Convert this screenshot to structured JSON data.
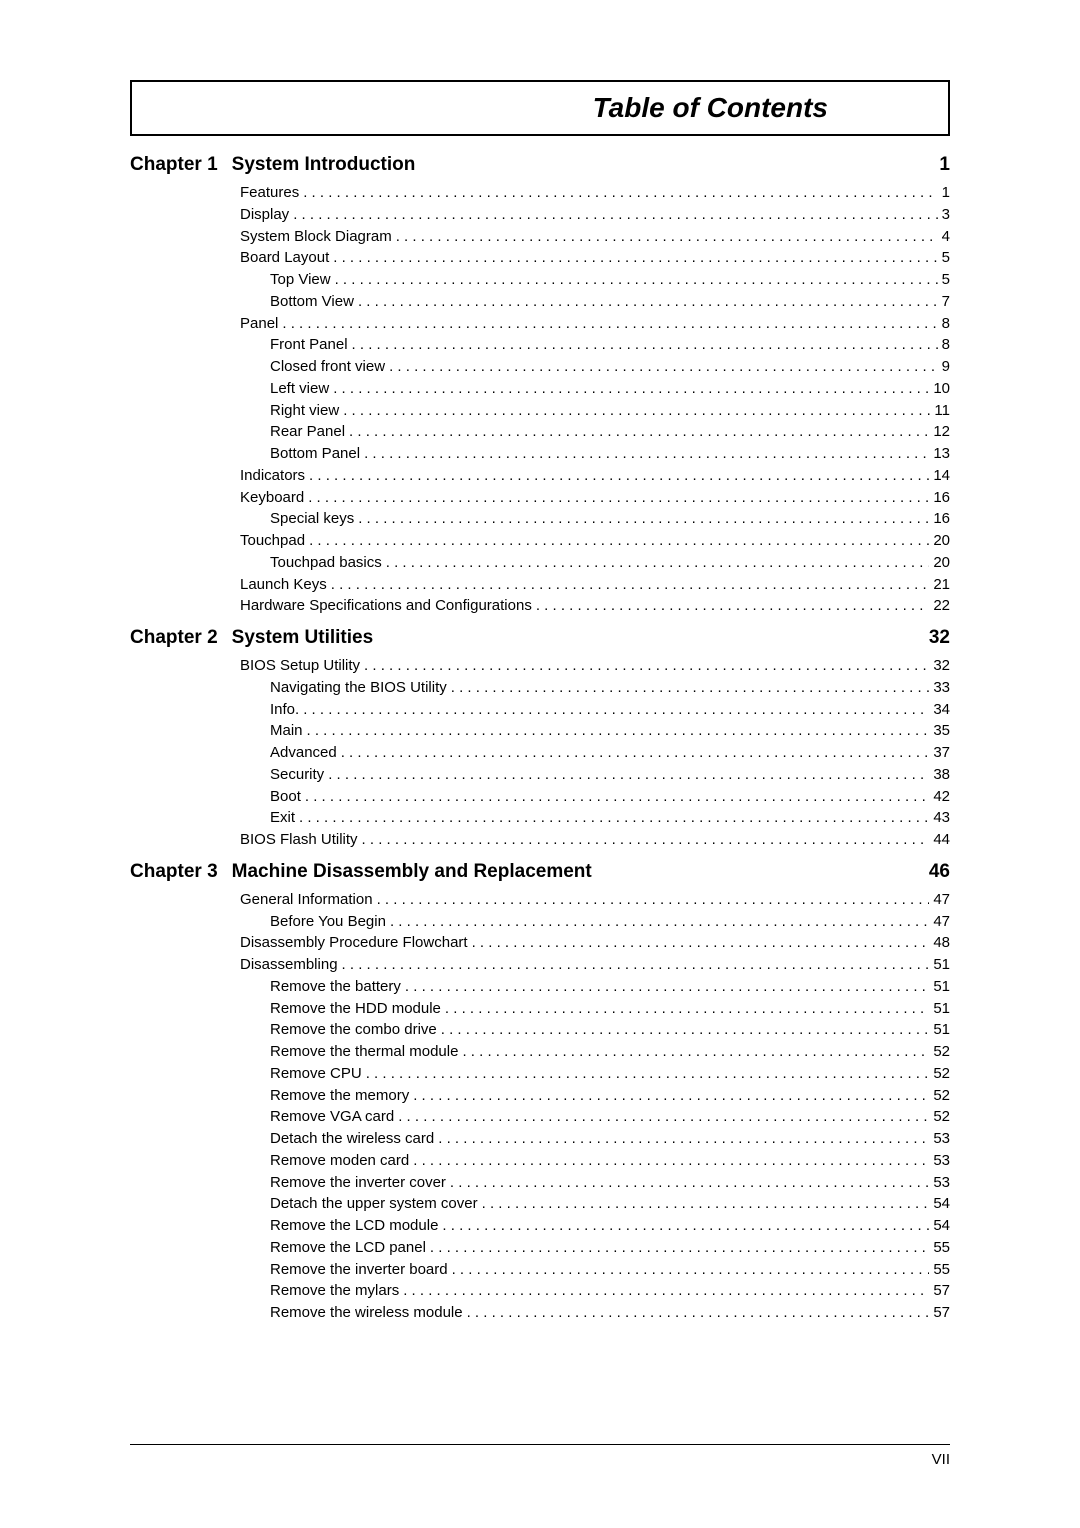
{
  "title": "Table of Contents",
  "page_number": "VII",
  "colors": {
    "text": "#000000",
    "background": "#ffffff",
    "rule": "#000000"
  },
  "typography": {
    "title_fontsize": 28,
    "title_weight": "bold",
    "title_style": "italic",
    "chapter_fontsize": 19,
    "chapter_weight": "bold",
    "entry_fontsize": 15
  },
  "chapters": [
    {
      "label": "Chapter 1",
      "title": "System Introduction",
      "page": "1",
      "entries": [
        {
          "level": 0,
          "label": "Features",
          "page": "1"
        },
        {
          "level": 0,
          "label": "Display",
          "page": "3"
        },
        {
          "level": 0,
          "label": "System Block Diagram",
          "page": "4"
        },
        {
          "level": 0,
          "label": "Board Layout",
          "page": "5"
        },
        {
          "level": 1,
          "label": "Top View",
          "page": "5"
        },
        {
          "level": 1,
          "label": "Bottom View",
          "page": "7"
        },
        {
          "level": 0,
          "label": "Panel",
          "page": "8"
        },
        {
          "level": 1,
          "label": "Front Panel",
          "page": "8"
        },
        {
          "level": 1,
          "label": "Closed front view",
          "page": "9"
        },
        {
          "level": 1,
          "label": "Left view",
          "page": "10"
        },
        {
          "level": 1,
          "label": "Right view",
          "page": "11"
        },
        {
          "level": 1,
          "label": "Rear Panel",
          "page": "12"
        },
        {
          "level": 1,
          "label": "Bottom Panel",
          "page": "13"
        },
        {
          "level": 0,
          "label": "Indicators",
          "page": "14"
        },
        {
          "level": 0,
          "label": "Keyboard",
          "page": "16"
        },
        {
          "level": 1,
          "label": "Special keys",
          "page": "16"
        },
        {
          "level": 0,
          "label": "Touchpad",
          "page": "20"
        },
        {
          "level": 1,
          "label": "Touchpad basics",
          "page": "20"
        },
        {
          "level": 0,
          "label": "Launch Keys",
          "page": "21"
        },
        {
          "level": 0,
          "label": "Hardware Specifications and Configurations",
          "page": "22"
        }
      ]
    },
    {
      "label": "Chapter 2",
      "title": "System Utilities",
      "page": "32",
      "entries": [
        {
          "level": 0,
          "label": "BIOS Setup Utility",
          "page": "32"
        },
        {
          "level": 1,
          "label": "Navigating the BIOS Utility",
          "page": "33"
        },
        {
          "level": 1,
          "label": "Info.",
          "page": "34"
        },
        {
          "level": 1,
          "label": "Main",
          "page": "35"
        },
        {
          "level": 1,
          "label": "Advanced",
          "page": "37"
        },
        {
          "level": 1,
          "label": "Security",
          "page": "38"
        },
        {
          "level": 1,
          "label": "Boot",
          "page": "42"
        },
        {
          "level": 1,
          "label": "Exit",
          "page": "43"
        },
        {
          "level": 0,
          "label": "BIOS Flash Utility",
          "page": "44"
        }
      ]
    },
    {
      "label": "Chapter 3",
      "title": "Machine Disassembly and Replacement",
      "page": "46",
      "entries": [
        {
          "level": 0,
          "label": "General Information",
          "page": "47"
        },
        {
          "level": 1,
          "label": "Before You Begin",
          "page": "47"
        },
        {
          "level": 0,
          "label": "Disassembly Procedure Flowchart",
          "page": "48"
        },
        {
          "level": 0,
          "label": "Disassembling",
          "page": "51"
        },
        {
          "level": 1,
          "label": "Remove the battery",
          "page": "51"
        },
        {
          "level": 1,
          "label": "Remove the HDD module",
          "page": "51"
        },
        {
          "level": 1,
          "label": "Remove the combo drive",
          "page": "51"
        },
        {
          "level": 1,
          "label": "Remove the thermal module",
          "page": "52"
        },
        {
          "level": 1,
          "label": "Remove CPU",
          "page": "52"
        },
        {
          "level": 1,
          "label": "Remove the memory",
          "page": "52"
        },
        {
          "level": 1,
          "label": "Remove VGA card",
          "page": "52"
        },
        {
          "level": 1,
          "label": "Detach the wireless card",
          "page": "53"
        },
        {
          "level": 1,
          "label": "Remove moden card",
          "page": "53"
        },
        {
          "level": 1,
          "label": "Remove the inverter cover",
          "page": "53"
        },
        {
          "level": 1,
          "label": "Detach the upper system cover",
          "page": "54"
        },
        {
          "level": 1,
          "label": "Remove the LCD module",
          "page": "54"
        },
        {
          "level": 1,
          "label": "Remove the LCD panel",
          "page": "55"
        },
        {
          "level": 1,
          "label": "Remove the inverter board",
          "page": "55"
        },
        {
          "level": 1,
          "label": "Remove the mylars",
          "page": "57"
        },
        {
          "level": 1,
          "label": "Remove the wireless module",
          "page": "57"
        }
      ]
    }
  ]
}
